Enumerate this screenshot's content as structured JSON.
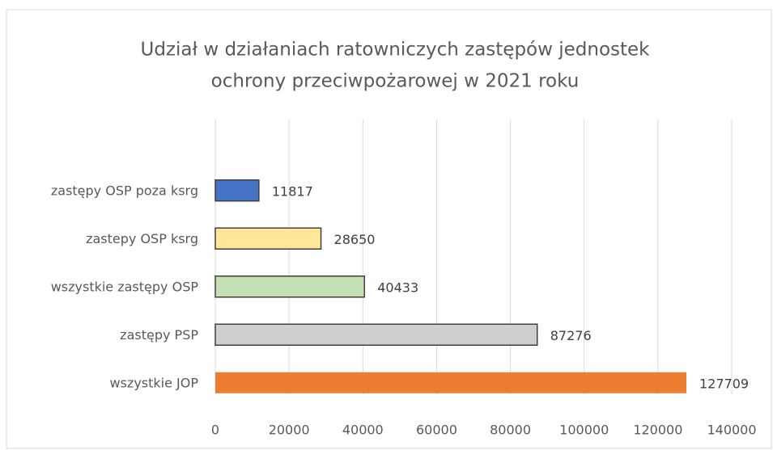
{
  "chart_data": {
    "type": "barh",
    "title": [
      "Udział w działaniach ratowniczych zastępów jednostek",
      "ochrony przeciwpożarowej w 2021 roku"
    ],
    "categories": [
      "zastępy OSP poza ksrg",
      "zastepy OSP ksrg",
      "wszystkie zastępy OSP",
      "zastępy PSP",
      "wszystkie JOP"
    ],
    "values": [
      11817,
      28650,
      40433,
      87276,
      127709
    ],
    "colors": [
      "#4472c4",
      "#ffe699",
      "#c5e0b4",
      "#d0cece",
      "#ed7d31"
    ],
    "edgecolors": [
      "#404040",
      "#404040",
      "#404040",
      "#404040",
      null
    ],
    "xlim": [
      0,
      140000
    ],
    "xticks": [
      0,
      20000,
      40000,
      60000,
      80000,
      100000,
      120000,
      140000
    ],
    "grid": true
  }
}
